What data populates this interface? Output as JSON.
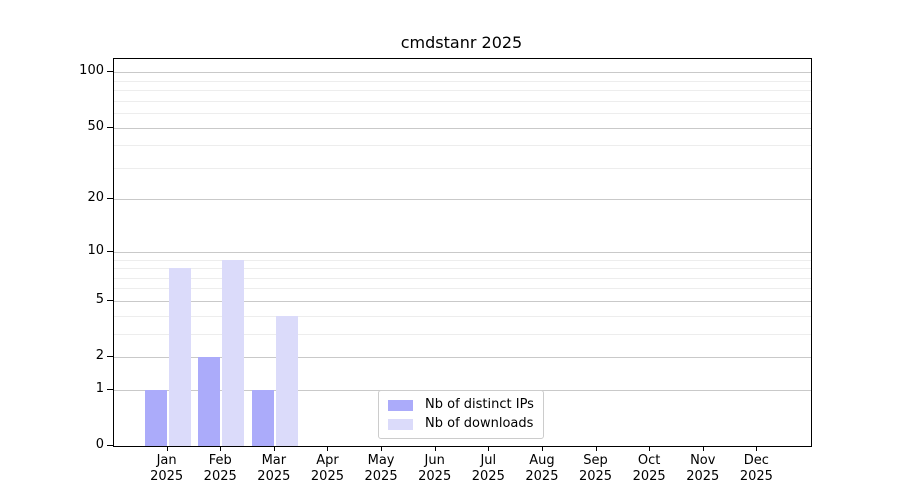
{
  "chart_data": {
    "type": "bar",
    "title": "cmdstanr 2025",
    "categories": [
      "Jan",
      "Feb",
      "Mar",
      "Apr",
      "May",
      "Jun",
      "Jul",
      "Aug",
      "Sep",
      "Oct",
      "Nov",
      "Dec"
    ],
    "year": "2025",
    "series": [
      {
        "name": "Nb of distinct IPs",
        "color": "#ababfa",
        "values": [
          1,
          2,
          1,
          0,
          0,
          0,
          0,
          0,
          0,
          0,
          0,
          0
        ]
      },
      {
        "name": "Nb of downloads",
        "color": "#dbdbfa",
        "values": [
          8,
          9,
          4,
          0,
          0,
          0,
          0,
          0,
          0,
          0,
          0,
          0
        ]
      }
    ],
    "xlabel": "",
    "ylabel": "",
    "yscale": "log1p",
    "ylim": [
      0,
      118
    ],
    "y_major_ticks": [
      0,
      1,
      2,
      5,
      10,
      20,
      50,
      100
    ],
    "y_minor_gridlines": [
      3,
      4,
      6,
      7,
      8,
      9,
      30,
      40,
      60,
      70,
      80,
      90
    ],
    "grid": "on",
    "legend_position": "inside lower-center",
    "colors": {
      "grid_major": "#c9c9c9",
      "grid_minor": "#ededed",
      "axis": "#000000",
      "legend_border": "#cccccc",
      "background": "#ffffff",
      "text": "#000000"
    }
  }
}
